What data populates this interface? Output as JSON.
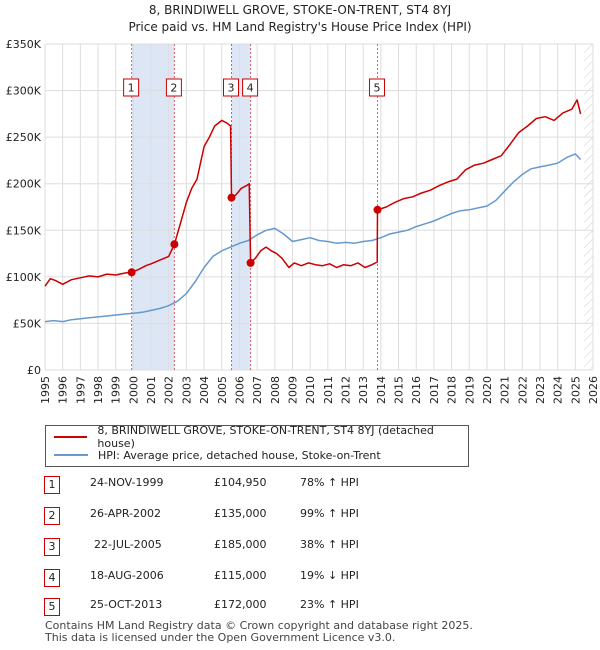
{
  "header": {
    "title_line1": "8, BRINDIWELL GROVE, STOKE-ON-TRENT, ST4 8YJ",
    "title_line2": "Price paid vs. HM Land Registry's House Price Index (HPI)"
  },
  "legend": {
    "property_label": "8, BRINDIWELL GROVE, STOKE-ON-TRENT, ST4 8YJ (detached house)",
    "hpi_label": "HPI: Average price, detached house, Stoke-on-Trent"
  },
  "transactions": [
    {
      "num": "1",
      "date": "24-NOV-1999",
      "price": "£104,950",
      "hpi": "78% ↑ HPI"
    },
    {
      "num": "2",
      "date": "26-APR-2002",
      "price": "£135,000",
      "hpi": "99% ↑ HPI"
    },
    {
      "num": "3",
      "date": "22-JUL-2005",
      "price": "£185,000",
      "hpi": "38% ↑ HPI"
    },
    {
      "num": "4",
      "date": "18-AUG-2006",
      "price": "£115,000",
      "hpi": "19% ↓ HPI"
    },
    {
      "num": "5",
      "date": "25-OCT-2013",
      "price": "£172,000",
      "hpi": "23% ↑ HPI"
    }
  ],
  "footer": {
    "line1": "Contains HM Land Registry data © Crown copyright and database right 2025.",
    "line2": "This data is licensed under the Open Government Licence v3.0."
  },
  "colors": {
    "property": "#cc0000",
    "hpi": "#6699cc",
    "shade": "#dde6f5",
    "grid": "#dddddd",
    "hatch": "#cccccc"
  },
  "chart_data": {
    "type": "line",
    "xlim": [
      1995,
      2026
    ],
    "ylim": [
      0,
      350000
    ],
    "x_ticks": [
      "1995",
      "1996",
      "1997",
      "1998",
      "1999",
      "2000",
      "2001",
      "2002",
      "2003",
      "2004",
      "2005",
      "2006",
      "2007",
      "2008",
      "2009",
      "2010",
      "2011",
      "2012",
      "2013",
      "2014",
      "2015",
      "2016",
      "2017",
      "2018",
      "2019",
      "2020",
      "2021",
      "2022",
      "2023",
      "2024",
      "2025",
      "2026"
    ],
    "y_ticks": [
      {
        "value": 0,
        "label": "£0"
      },
      {
        "value": 50000,
        "label": "£50K"
      },
      {
        "value": 100000,
        "label": "£100K"
      },
      {
        "value": 150000,
        "label": "£150K"
      },
      {
        "value": 200000,
        "label": "£200K"
      },
      {
        "value": 250000,
        "label": "£250K"
      },
      {
        "value": 300000,
        "label": "£300K"
      },
      {
        "value": 350000,
        "label": "£350K"
      }
    ],
    "grid": true,
    "shaded_spans": [
      [
        1999.9,
        2002.32
      ],
      [
        2005.55,
        2006.63
      ]
    ],
    "future_hatch_from": 2025.5,
    "series": [
      {
        "name": "8, BRINDIWELL GROVE, STOKE-ON-TRENT, ST4 8YJ (detached house)",
        "x": [
          1995.0,
          1995.3,
          1995.6,
          1996.0,
          1996.5,
          1997.0,
          1997.5,
          1998.0,
          1998.5,
          1999.0,
          1999.5,
          1999.9,
          2000.3,
          2000.7,
          2001.0,
          2001.5,
          2002.0,
          2002.32,
          2002.7,
          2003.0,
          2003.3,
          2003.6,
          2004.0,
          2004.3,
          2004.6,
          2005.0,
          2005.3,
          2005.5,
          2005.55,
          2005.8,
          2006.1,
          2006.4,
          2006.55,
          2006.63,
          2006.9,
          2007.2,
          2007.5,
          2007.8,
          2008.1,
          2008.4,
          2008.8,
          2009.1,
          2009.5,
          2009.9,
          2010.3,
          2010.7,
          2011.1,
          2011.5,
          2011.9,
          2012.3,
          2012.7,
          2013.1,
          2013.5,
          2013.79,
          2013.81,
          2014.3,
          2014.8,
          2015.3,
          2015.8,
          2016.3,
          2016.8,
          2017.3,
          2017.8,
          2018.3,
          2018.8,
          2019.3,
          2019.8,
          2020.3,
          2020.8,
          2021.3,
          2021.8,
          2022.3,
          2022.8,
          2023.3,
          2023.8,
          2024.3,
          2024.8,
          2025.1,
          2025.3
        ],
        "y": [
          90000,
          98000,
          96000,
          92000,
          97000,
          99000,
          101000,
          100000,
          103000,
          102000,
          104000,
          104950,
          108000,
          112000,
          114000,
          118000,
          122000,
          135000,
          160000,
          180000,
          195000,
          205000,
          240000,
          250000,
          262000,
          268000,
          265000,
          262000,
          185000,
          188000,
          195000,
          198000,
          200000,
          115000,
          120000,
          128000,
          132000,
          128000,
          125000,
          120000,
          110000,
          115000,
          112000,
          115000,
          113000,
          112000,
          114000,
          110000,
          113000,
          112000,
          115000,
          110000,
          113000,
          116000,
          172000,
          175000,
          180000,
          184000,
          186000,
          190000,
          193000,
          198000,
          202000,
          205000,
          215000,
          220000,
          222000,
          226000,
          230000,
          242000,
          255000,
          262000,
          270000,
          272000,
          268000,
          276000,
          280000,
          290000,
          275000
        ]
      },
      {
        "name": "HPI: Average price, detached house, Stoke-on-Trent",
        "x": [
          1995.0,
          1995.5,
          1996.0,
          1996.5,
          1997.0,
          1997.5,
          1998.0,
          1998.5,
          1999.0,
          1999.5,
          2000.0,
          2000.5,
          2001.0,
          2001.5,
          2002.0,
          2002.5,
          2003.0,
          2003.5,
          2004.0,
          2004.5,
          2005.0,
          2005.5,
          2006.0,
          2006.5,
          2007.0,
          2007.5,
          2008.0,
          2008.5,
          2009.0,
          2009.5,
          2010.0,
          2010.5,
          2011.0,
          2011.5,
          2012.0,
          2012.5,
          2013.0,
          2013.5,
          2014.0,
          2014.5,
          2015.0,
          2015.5,
          2016.0,
          2016.5,
          2017.0,
          2017.5,
          2018.0,
          2018.5,
          2019.0,
          2019.5,
          2020.0,
          2020.5,
          2021.0,
          2021.5,
          2022.0,
          2022.5,
          2023.0,
          2023.5,
          2024.0,
          2024.5,
          2025.0,
          2025.3
        ],
        "y": [
          52000,
          53000,
          52000,
          54000,
          55000,
          56000,
          57000,
          58000,
          59000,
          60000,
          61000,
          62000,
          64000,
          66000,
          69000,
          74000,
          82000,
          95000,
          110000,
          122000,
          128000,
          132000,
          136000,
          139000,
          145000,
          150000,
          152000,
          146000,
          138000,
          140000,
          142000,
          139000,
          138000,
          136000,
          137000,
          136000,
          138000,
          139000,
          142000,
          146000,
          148000,
          150000,
          154000,
          157000,
          160000,
          164000,
          168000,
          171000,
          172000,
          174000,
          176000,
          182000,
          192000,
          202000,
          210000,
          216000,
          218000,
          220000,
          222000,
          228000,
          232000,
          226000
        ]
      }
    ],
    "markers": [
      {
        "label": "1",
        "x": 1999.9,
        "y": 104950
      },
      {
        "label": "2",
        "x": 2002.32,
        "y": 135000
      },
      {
        "label": "3",
        "x": 2005.55,
        "y": 185000
      },
      {
        "label": "4",
        "x": 2006.63,
        "y": 115000
      },
      {
        "label": "5",
        "x": 2013.81,
        "y": 172000
      }
    ]
  }
}
